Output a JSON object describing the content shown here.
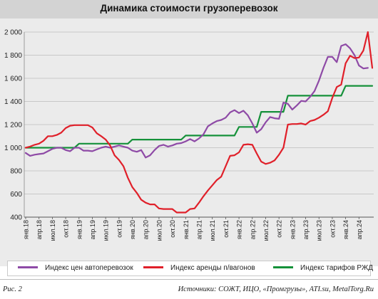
{
  "chart_data": {
    "type": "line",
    "title": "Динамика стоимости грузоперевозок",
    "xlabel": "",
    "ylabel": "",
    "ylim": [
      400,
      2000
    ],
    "yticks": [
      400,
      600,
      800,
      1000,
      1200,
      1400,
      1600,
      1800,
      2000
    ],
    "ytick_labels": [
      "400",
      "600",
      "800",
      "1 000",
      "1 200",
      "1 400",
      "1 600",
      "1 800",
      "2 000"
    ],
    "x_start": "2018-01",
    "tick_labels": [
      "янв.18",
      "апр.18",
      "июл.18",
      "окт.18",
      "янв.19",
      "апр.19",
      "июл.19",
      "окт.19",
      "янв.20",
      "апр.20",
      "июл.20",
      "окт.20",
      "янв.21",
      "апр.21",
      "июл.21",
      "окт.21",
      "янв.22",
      "апр.22",
      "июл.22",
      "окт.22",
      "янв.23",
      "апр.23",
      "июл.23",
      "окт.23",
      "янв.24",
      "апр.24"
    ],
    "grid": true,
    "legend_position": "bottom",
    "series": [
      {
        "name": "Индекс цен автоперевозок",
        "color": "#8e4aa6",
        "values": [
          955,
          930,
          940,
          945,
          950,
          970,
          990,
          1000,
          1000,
          980,
          970,
          1000,
          1000,
          975,
          975,
          970,
          985,
          1000,
          1010,
          1000,
          1010,
          1020,
          1010,
          1000,
          975,
          965,
          980,
          915,
          935,
          980,
          1015,
          1025,
          1010,
          1020,
          1035,
          1040,
          1055,
          1075,
          1055,
          1080,
          1115,
          1185,
          1210,
          1230,
          1240,
          1260,
          1305,
          1325,
          1300,
          1320,
          1280,
          1210,
          1130,
          1160,
          1220,
          1265,
          1255,
          1250,
          1390,
          1380,
          1330,
          1365,
          1405,
          1400,
          1440,
          1490,
          1580,
          1690,
          1785,
          1785,
          1740,
          1880,
          1895,
          1860,
          1800,
          1710,
          1685,
          1690
        ]
      },
      {
        "name": "Индекс аренды п/вагонов",
        "color": "#e0202a",
        "values": [
          1000,
          1010,
          1025,
          1035,
          1060,
          1100,
          1100,
          1110,
          1130,
          1170,
          1190,
          1195,
          1195,
          1195,
          1195,
          1175,
          1125,
          1100,
          1070,
          1020,
          935,
          895,
          840,
          740,
          660,
          610,
          550,
          525,
          510,
          510,
          475,
          470,
          470,
          470,
          440,
          440,
          440,
          470,
          475,
          525,
          580,
          630,
          675,
          720,
          750,
          840,
          930,
          935,
          960,
          1025,
          1030,
          1025,
          950,
          880,
          860,
          870,
          890,
          940,
          1000,
          1200,
          1205,
          1205,
          1210,
          1200,
          1230,
          1240,
          1260,
          1285,
          1315,
          1430,
          1525,
          1545,
          1730,
          1795,
          1775,
          1780,
          1840,
          2000,
          1690
        ]
      },
      {
        "name": "Индекс тарифов РЖД",
        "color": "#15913a",
        "values": [
          1000,
          1000,
          1000,
          1000,
          1000,
          1000,
          1000,
          1000,
          1000,
          1000,
          1000,
          1000,
          1035,
          1035,
          1035,
          1035,
          1035,
          1035,
          1035,
          1035,
          1035,
          1035,
          1035,
          1035,
          1070,
          1070,
          1070,
          1070,
          1070,
          1070,
          1070,
          1070,
          1070,
          1070,
          1070,
          1070,
          1105,
          1105,
          1105,
          1105,
          1105,
          1105,
          1105,
          1105,
          1105,
          1105,
          1105,
          1105,
          1180,
          1180,
          1180,
          1180,
          1180,
          1310,
          1310,
          1310,
          1310,
          1310,
          1310,
          1450,
          1450,
          1450,
          1450,
          1450,
          1450,
          1450,
          1450,
          1450,
          1450,
          1450,
          1450,
          1450,
          1535,
          1535,
          1535,
          1535,
          1535,
          1535,
          1535
        ]
      }
    ]
  },
  "footer": {
    "figure_label": "Рис. 2",
    "source": "Источники: СОЖТ, ИЦО, «Промгрузы», ATI.su, MetalTorg.Ru"
  }
}
